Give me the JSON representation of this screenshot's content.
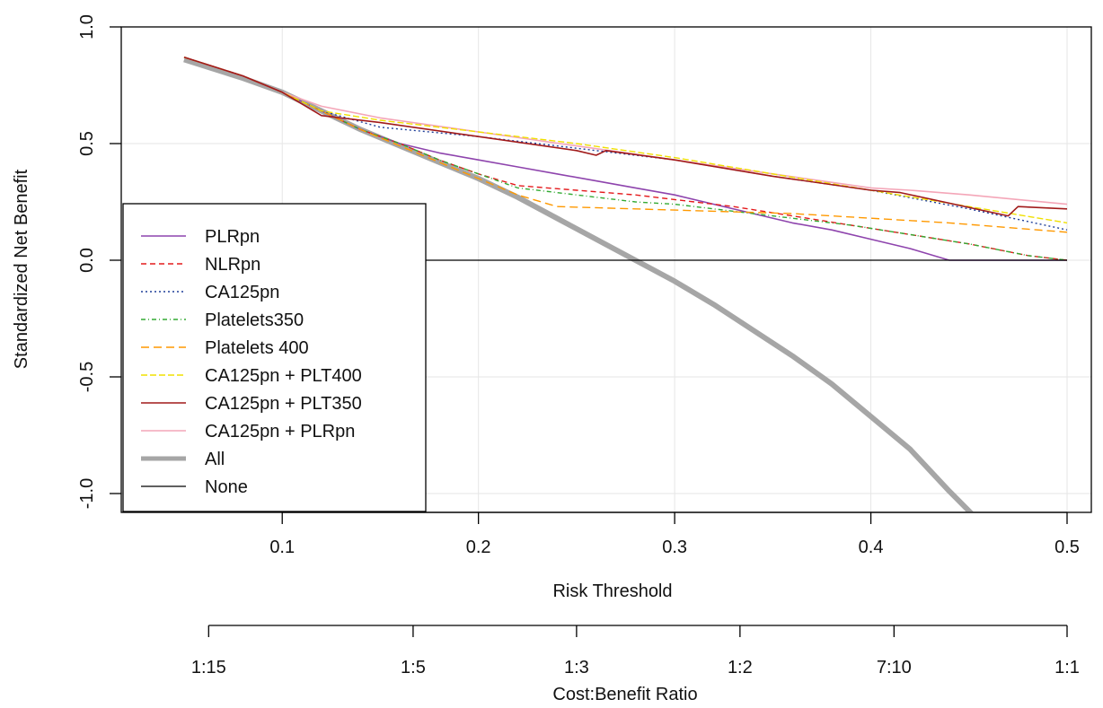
{
  "chart_data": {
    "type": "line",
    "title": "",
    "xlabel": "Risk Threshold",
    "ylabel": "Standardized Net Benefit",
    "xlim": [
      0.05,
      0.5
    ],
    "ylim": [
      -1.1,
      1.0
    ],
    "xticks": [
      0.1,
      0.2,
      0.3,
      0.4,
      0.5
    ],
    "xtick_labels": [
      "0.1",
      "0.2",
      "0.3",
      "0.4",
      "0.5"
    ],
    "yticks": [
      -1.0,
      -0.5,
      0.0,
      0.5,
      1.0
    ],
    "ytick_labels": [
      "-1.0",
      "-0.5",
      "0.0",
      "0.5",
      "1.0"
    ],
    "grid": true,
    "legend_position": "left",
    "secondary_axis": {
      "label": "Cost:Benefit Ratio",
      "ticks": [
        0.0625,
        0.1667,
        0.25,
        0.3333,
        0.4118,
        0.5
      ],
      "tick_labels": [
        "1:15",
        "1:5",
        "1:3",
        "1:2",
        "7:10",
        "1:1"
      ]
    },
    "series": [
      {
        "name": "PLRpn",
        "color": "#8e44ad",
        "dash": "solid",
        "width": 1.6,
        "x": [
          0.05,
          0.08,
          0.1,
          0.12,
          0.14,
          0.16,
          0.18,
          0.2,
          0.22,
          0.24,
          0.26,
          0.28,
          0.3,
          0.32,
          0.34,
          0.36,
          0.38,
          0.4,
          0.42,
          0.44,
          0.5
        ],
        "y": [
          0.87,
          0.79,
          0.72,
          0.64,
          0.56,
          0.5,
          0.46,
          0.43,
          0.4,
          0.37,
          0.34,
          0.31,
          0.28,
          0.24,
          0.2,
          0.16,
          0.13,
          0.09,
          0.05,
          0.0,
          0.0
        ]
      },
      {
        "name": "NLRpn",
        "color": "#e41a1c",
        "dash": "6,4",
        "width": 1.4,
        "x": [
          0.05,
          0.08,
          0.1,
          0.12,
          0.14,
          0.16,
          0.18,
          0.2,
          0.22,
          0.25,
          0.28,
          0.3,
          0.33,
          0.36,
          0.39,
          0.42,
          0.45,
          0.48,
          0.5
        ],
        "y": [
          0.87,
          0.79,
          0.72,
          0.64,
          0.56,
          0.5,
          0.43,
          0.37,
          0.32,
          0.3,
          0.28,
          0.26,
          0.23,
          0.19,
          0.15,
          0.11,
          0.07,
          0.02,
          0.0
        ]
      },
      {
        "name": "CA125pn",
        "color": "#1f3f99",
        "dash": "2,3",
        "width": 1.4,
        "x": [
          0.05,
          0.08,
          0.1,
          0.12,
          0.15,
          0.2,
          0.25,
          0.3,
          0.35,
          0.4,
          0.45,
          0.5
        ],
        "y": [
          0.87,
          0.79,
          0.72,
          0.64,
          0.57,
          0.53,
          0.48,
          0.43,
          0.36,
          0.3,
          0.22,
          0.13
        ]
      },
      {
        "name": "Platelets350",
        "color": "#33aa33",
        "dash": "5,3,1,3",
        "width": 1.4,
        "x": [
          0.05,
          0.08,
          0.1,
          0.12,
          0.14,
          0.16,
          0.18,
          0.2,
          0.22,
          0.25,
          0.28,
          0.3,
          0.33,
          0.36,
          0.39,
          0.42,
          0.45,
          0.48,
          0.5
        ],
        "y": [
          0.87,
          0.79,
          0.72,
          0.64,
          0.56,
          0.5,
          0.43,
          0.37,
          0.31,
          0.28,
          0.25,
          0.24,
          0.21,
          0.18,
          0.15,
          0.11,
          0.07,
          0.02,
          0.0
        ]
      },
      {
        "name": "Platelets 400",
        "color": "#ff9900",
        "dash": "9,5",
        "width": 1.4,
        "x": [
          0.05,
          0.08,
          0.1,
          0.12,
          0.14,
          0.16,
          0.18,
          0.2,
          0.22,
          0.24,
          0.28,
          0.32,
          0.36,
          0.4,
          0.44,
          0.5
        ],
        "y": [
          0.87,
          0.79,
          0.72,
          0.64,
          0.56,
          0.49,
          0.42,
          0.35,
          0.28,
          0.23,
          0.22,
          0.21,
          0.2,
          0.18,
          0.16,
          0.12
        ]
      },
      {
        "name": "CA125pn + PLT400",
        "color": "#f0e000",
        "dash": "7,3",
        "width": 1.4,
        "x": [
          0.05,
          0.08,
          0.1,
          0.12,
          0.15,
          0.2,
          0.25,
          0.3,
          0.35,
          0.4,
          0.45,
          0.5
        ],
        "y": [
          0.87,
          0.79,
          0.72,
          0.64,
          0.6,
          0.55,
          0.5,
          0.44,
          0.37,
          0.3,
          0.23,
          0.16
        ]
      },
      {
        "name": "CA125pn + PLT350",
        "color": "#a11a1a",
        "dash": "solid",
        "width": 1.6,
        "x": [
          0.05,
          0.08,
          0.1,
          0.12,
          0.15,
          0.2,
          0.25,
          0.26,
          0.265,
          0.3,
          0.35,
          0.4,
          0.415,
          0.47,
          0.475,
          0.5
        ],
        "y": [
          0.87,
          0.79,
          0.72,
          0.62,
          0.59,
          0.53,
          0.47,
          0.45,
          0.47,
          0.43,
          0.36,
          0.3,
          0.29,
          0.19,
          0.23,
          0.22
        ]
      },
      {
        "name": "CA125pn + PLRpn",
        "color": "#f4a6b8",
        "dash": "solid",
        "width": 1.6,
        "x": [
          0.05,
          0.08,
          0.1,
          0.12,
          0.15,
          0.2,
          0.25,
          0.3,
          0.35,
          0.4,
          0.42,
          0.45,
          0.5
        ],
        "y": [
          0.87,
          0.79,
          0.72,
          0.66,
          0.61,
          0.55,
          0.49,
          0.43,
          0.37,
          0.31,
          0.3,
          0.28,
          0.24
        ]
      },
      {
        "name": "All",
        "color": "#a6a6a6",
        "dash": "solid",
        "width": 6,
        "x": [
          0.05,
          0.08,
          0.1,
          0.12,
          0.14,
          0.16,
          0.18,
          0.2,
          0.22,
          0.24,
          0.26,
          0.28,
          0.3,
          0.32,
          0.34,
          0.36,
          0.38,
          0.4,
          0.42,
          0.44,
          0.453
        ],
        "y": [
          0.86,
          0.78,
          0.72,
          0.64,
          0.56,
          0.49,
          0.42,
          0.35,
          0.27,
          0.18,
          0.09,
          0.0,
          -0.09,
          -0.19,
          -0.3,
          -0.41,
          -0.53,
          -0.67,
          -0.81,
          -0.99,
          -1.1
        ]
      },
      {
        "name": "None",
        "color": "#000000",
        "dash": "solid",
        "width": 1.2,
        "x": [
          0.05,
          0.5
        ],
        "y": [
          0.0,
          0.0
        ]
      }
    ]
  }
}
